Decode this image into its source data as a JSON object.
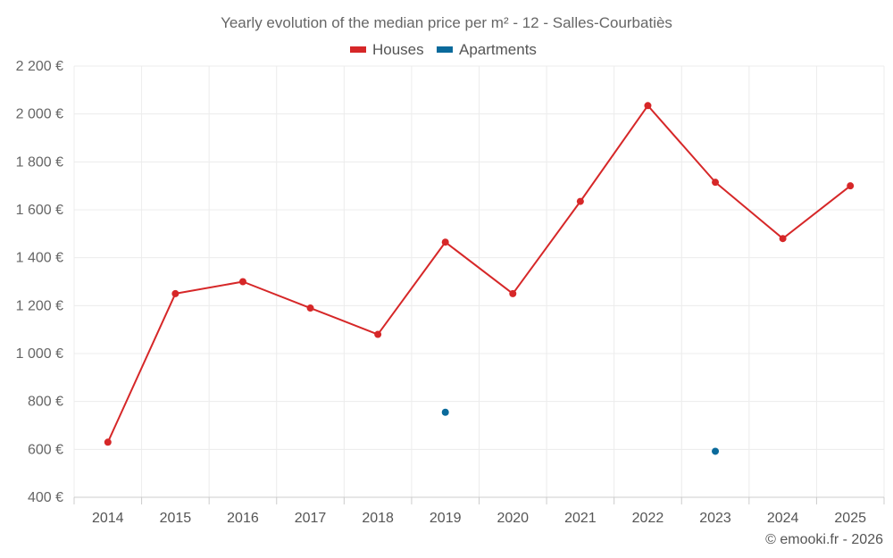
{
  "chart_data": {
    "type": "line",
    "title": "Yearly evolution of the median price per m² - 12 - Salles-Courbatiès",
    "categories": [
      "2014",
      "2015",
      "2016",
      "2017",
      "2018",
      "2019",
      "2020",
      "2021",
      "2022",
      "2023",
      "2024",
      "2025"
    ],
    "series": [
      {
        "name": "Houses",
        "color": "#d62728",
        "values": [
          630,
          1250,
          1300,
          1190,
          1080,
          1465,
          1250,
          1635,
          2035,
          1715,
          1480,
          1700
        ]
      },
      {
        "name": "Apartments",
        "color": "#0a6a9b",
        "values": [
          null,
          null,
          null,
          null,
          null,
          755,
          null,
          null,
          null,
          592,
          null,
          null
        ]
      }
    ],
    "yticks": [
      400,
      600,
      800,
      1000,
      1200,
      1400,
      1600,
      1800,
      2000,
      2200
    ],
    "ytick_labels": [
      "400 €",
      "600 €",
      "800 €",
      "1 000 €",
      "1 200 €",
      "1 400 €",
      "1 600 €",
      "1 800 €",
      "2 000 €",
      "2 200 €"
    ],
    "ylim": [
      400,
      2200
    ],
    "xlabel": "",
    "ylabel": "",
    "grid": true,
    "legend_position": "top-center"
  },
  "credit": "© emooki.fr - 2026"
}
